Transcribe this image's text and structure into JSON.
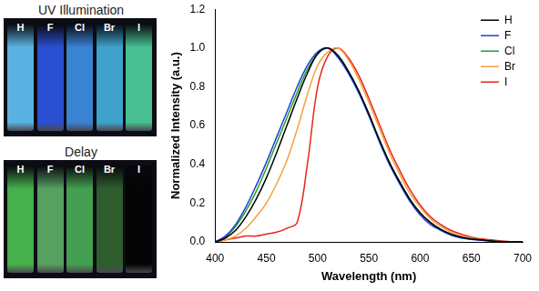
{
  "images": [
    {
      "title": "UV Illumination",
      "vials": [
        "H",
        "F",
        "Cl",
        "Br",
        "I"
      ]
    },
    {
      "title": "Delay",
      "vials": [
        "H",
        "F",
        "Cl",
        "Br",
        "I"
      ]
    }
  ],
  "chart_data": {
    "type": "line",
    "x_label": "Wavelength (nm)",
    "y_label": "Normalized Intensity (a.u.)",
    "x": [
      400,
      410,
      420,
      430,
      440,
      450,
      460,
      470,
      480,
      490,
      500,
      510,
      520,
      530,
      540,
      550,
      560,
      570,
      580,
      590,
      600,
      610,
      620,
      630,
      640,
      650,
      660,
      670,
      680,
      690,
      700
    ],
    "series": [
      {
        "name": "H",
        "color": "#000000",
        "values": [
          0,
          0.02,
          0.06,
          0.13,
          0.22,
          0.33,
          0.46,
          0.6,
          0.74,
          0.87,
          0.97,
          1.0,
          0.96,
          0.88,
          0.78,
          0.66,
          0.53,
          0.41,
          0.31,
          0.22,
          0.15,
          0.1,
          0.065,
          0.04,
          0.025,
          0.015,
          0.01,
          0.005,
          0,
          0,
          0
        ]
      },
      {
        "name": "F",
        "color": "#1f3fd8",
        "values": [
          0,
          0.03,
          0.09,
          0.18,
          0.29,
          0.41,
          0.54,
          0.67,
          0.8,
          0.91,
          0.98,
          1.0,
          0.95,
          0.87,
          0.77,
          0.65,
          0.52,
          0.4,
          0.3,
          0.21,
          0.14,
          0.09,
          0.06,
          0.035,
          0.02,
          0.013,
          0.008,
          0.004,
          0,
          0,
          0
        ]
      },
      {
        "name": "Cl",
        "color": "#22a02a",
        "values": [
          0,
          0.025,
          0.08,
          0.16,
          0.26,
          0.38,
          0.51,
          0.64,
          0.77,
          0.89,
          0.97,
          1.0,
          0.96,
          0.88,
          0.78,
          0.66,
          0.53,
          0.41,
          0.31,
          0.22,
          0.15,
          0.1,
          0.065,
          0.04,
          0.025,
          0.015,
          0.01,
          0.005,
          0,
          0,
          0
        ]
      },
      {
        "name": "Br",
        "color": "#f5a03c",
        "values": [
          0,
          0.01,
          0.03,
          0.07,
          0.13,
          0.2,
          0.3,
          0.42,
          0.58,
          0.76,
          0.91,
          0.98,
          1.0,
          0.94,
          0.84,
          0.72,
          0.59,
          0.46,
          0.35,
          0.25,
          0.18,
          0.12,
          0.08,
          0.05,
          0.03,
          0.02,
          0.01,
          0.005,
          0,
          0,
          0
        ]
      },
      {
        "name": "I",
        "color": "#e8251a",
        "values": [
          0,
          0.01,
          0.02,
          0.03,
          0.03,
          0.04,
          0.05,
          0.07,
          0.1,
          0.4,
          0.8,
          0.96,
          1.0,
          0.95,
          0.86,
          0.74,
          0.61,
          0.48,
          0.37,
          0.27,
          0.19,
          0.13,
          0.09,
          0.06,
          0.04,
          0.025,
          0.015,
          0.01,
          0.005,
          0,
          0
        ]
      }
    ],
    "xlim": [
      400,
      700
    ],
    "xticks": [
      400,
      450,
      500,
      550,
      600,
      650,
      700
    ],
    "ylim": [
      0,
      1.2
    ],
    "yticks": [
      {
        "value": 0,
        "label": "0.0"
      },
      0.2,
      0.4,
      0.6,
      0.8,
      {
        "value": 1,
        "label": "1.0"
      },
      1.2
    ],
    "grid": false,
    "legend": "upper right"
  }
}
